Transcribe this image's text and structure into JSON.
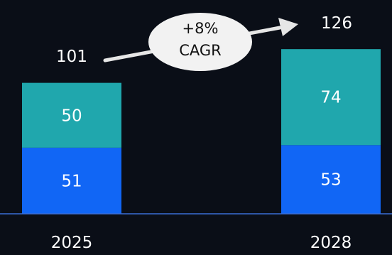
{
  "chart_data": {
    "type": "bar",
    "stacked": true,
    "categories": [
      "2025",
      "2028"
    ],
    "series": [
      {
        "values": [
          51,
          53
        ],
        "color": "#1166f5"
      },
      {
        "values": [
          50,
          74
        ],
        "color": "#20a7ad"
      }
    ],
    "totals": [
      "101",
      "126"
    ],
    "annotation": {
      "line1": "+8%",
      "line2": "CAGR"
    },
    "ylim": [
      0,
      126
    ],
    "grid": false,
    "legend": "none",
    "text_color": "#ffffff",
    "axis_color": "#3b6fd6",
    "bubble_color": "#f2f2f2",
    "bubble_text_color": "#111111",
    "arrow_color": "#e6e6e6"
  }
}
